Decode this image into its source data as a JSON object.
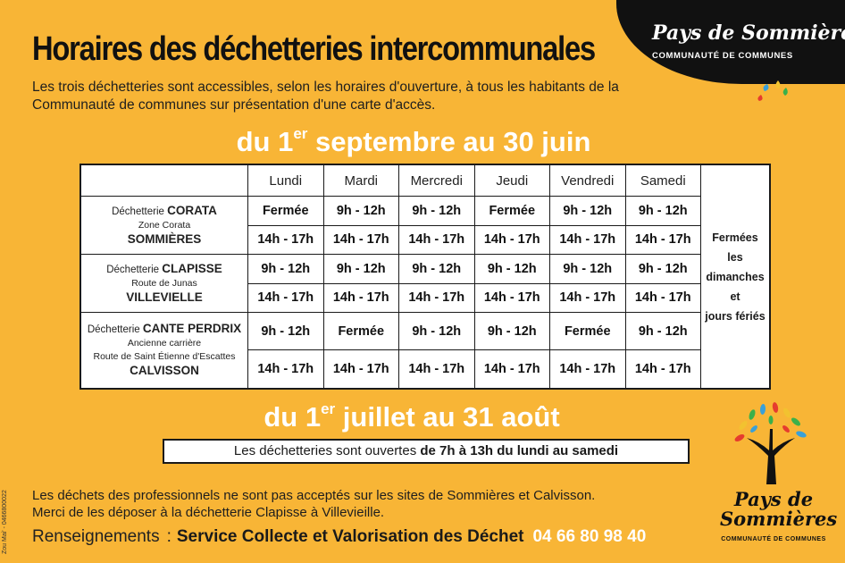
{
  "logo_top": {
    "name": "Pays de Sommières",
    "subtitle": "COMMUNAUTÉ DE COMMUNES"
  },
  "title": "Horaires des déchetteries intercommunales",
  "intro": "Les trois déchetteries sont accessibles, selon les horaires d'ouverture, à tous les habitants de la Communauté de communes sur présentation d'une carte d'accès.",
  "period1": {
    "pre": "du 1",
    "sup": "er",
    "post": " septembre au 30 juin"
  },
  "days": [
    "Lundi",
    "Mardi",
    "Mercredi",
    "Jeudi",
    "Vendredi",
    "Samedi"
  ],
  "sites": [
    {
      "prefix": "Déchetterie ",
      "name": "CORATA",
      "addr1": "Zone Corata",
      "addr2": "",
      "town": "SOMMIÈRES",
      "morning": [
        "Fermée",
        "9h - 12h",
        "9h - 12h",
        "Fermée",
        "9h - 12h",
        "9h - 12h"
      ],
      "afternoon": [
        "14h - 17h",
        "14h - 17h",
        "14h - 17h",
        "14h - 17h",
        "14h - 17h",
        "14h - 17h"
      ]
    },
    {
      "prefix": "Déchetterie ",
      "name": "CLAPISSE",
      "addr1": "Route de Junas",
      "addr2": "",
      "town": "VILLEVIELLE",
      "morning": [
        "9h - 12h",
        "9h - 12h",
        "9h - 12h",
        "9h - 12h",
        "9h - 12h",
        "9h - 12h"
      ],
      "afternoon": [
        "14h - 17h",
        "14h - 17h",
        "14h - 17h",
        "14h - 17h",
        "14h - 17h",
        "14h - 17h"
      ]
    },
    {
      "prefix": "Déchetterie ",
      "name": "CANTE PERDRIX",
      "addr1": "Ancienne carrière",
      "addr2": "Route de Saint Étienne d'Escattes",
      "town": "CALVISSON",
      "morning": [
        "9h - 12h",
        "Fermée",
        "9h - 12h",
        "9h - 12h",
        "Fermée",
        "9h - 12h"
      ],
      "afternoon": [
        "14h - 17h",
        "14h - 17h",
        "14h - 17h",
        "14h - 17h",
        "14h - 17h",
        "14h - 17h"
      ]
    }
  ],
  "closed_note": [
    "Fermées",
    "les",
    "dimanches",
    "et",
    "jours fériés"
  ],
  "period2": {
    "pre": "du 1",
    "sup": "er",
    "post": " juillet au 31 août"
  },
  "summer": {
    "text": "Les déchetteries sont ouvertes ",
    "bold": "de 7h à 13h du lundi au samedi"
  },
  "note_lines": [
    "Les déchets des professionnels ne sont pas acceptés sur les sites de Sommières et Calvisson.",
    "Merci de les déposer à la déchetterie Clapisse à Villevieille."
  ],
  "info": {
    "label": "Renseignements",
    "colon": ":",
    "service": "Service Collecte et Valorisation des Déchet",
    "phone": "04 66 80 98 40"
  },
  "side_code": "Zou Mai' - 0466800022",
  "logo_bottom": {
    "line1": "Pays de",
    "line2": "Sommières",
    "subtitle": "COMMUNAUTÉ DE COMMUNES"
  },
  "colors": {
    "background": "#f8b536",
    "highlight_text": "#ffffff",
    "ink": "#1a1a1a"
  }
}
